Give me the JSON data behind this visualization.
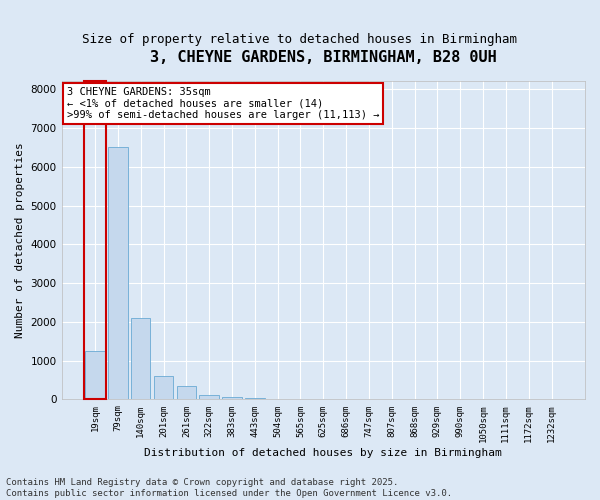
{
  "title": "3, CHEYNE GARDENS, BIRMINGHAM, B28 0UH",
  "subtitle": "Size of property relative to detached houses in Birmingham",
  "xlabel": "Distribution of detached houses by size in Birmingham",
  "ylabel": "Number of detached properties",
  "categories": [
    "19sqm",
    "79sqm",
    "140sqm",
    "201sqm",
    "261sqm",
    "322sqm",
    "383sqm",
    "443sqm",
    "504sqm",
    "565sqm",
    "625sqm",
    "686sqm",
    "747sqm",
    "807sqm",
    "868sqm",
    "929sqm",
    "990sqm",
    "1050sqm",
    "1111sqm",
    "1172sqm",
    "1232sqm"
  ],
  "values": [
    1250,
    6500,
    2100,
    600,
    350,
    120,
    70,
    30,
    10,
    0,
    0,
    0,
    0,
    0,
    0,
    0,
    0,
    0,
    0,
    0,
    0
  ],
  "bar_color": "#c5d8ed",
  "bar_edge_color": "#6aaad4",
  "annotation_text": "3 CHEYNE GARDENS: 35sqm\n← <1% of detached houses are smaller (14)\n>99% of semi-detached houses are larger (11,113) →",
  "annotation_box_color": "#ffffff",
  "annotation_box_edge_color": "#cc0000",
  "red_rect_edge_color": "#cc0000",
  "ylim": [
    0,
    8200
  ],
  "yticks": [
    0,
    1000,
    2000,
    3000,
    4000,
    5000,
    6000,
    7000,
    8000
  ],
  "background_color": "#dce8f5",
  "plot_bg_color": "#dce8f5",
  "grid_color": "#ffffff",
  "footer_line1": "Contains HM Land Registry data © Crown copyright and database right 2025.",
  "footer_line2": "Contains public sector information licensed under the Open Government Licence v3.0.",
  "title_fontsize": 11,
  "subtitle_fontsize": 9,
  "annotation_fontsize": 7.5,
  "footer_fontsize": 6.5,
  "ylabel_fontsize": 8,
  "xlabel_fontsize": 8
}
